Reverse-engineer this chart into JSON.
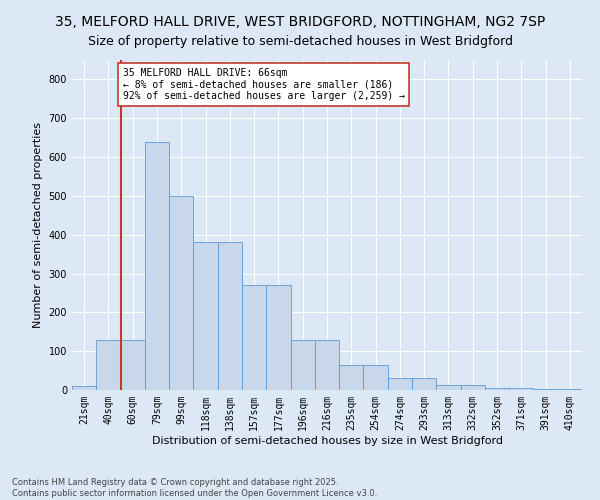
{
  "title_line1": "35, MELFORD HALL DRIVE, WEST BRIDGFORD, NOTTINGHAM, NG2 7SP",
  "title_line2": "Size of property relative to semi-detached houses in West Bridgford",
  "xlabel": "Distribution of semi-detached houses by size in West Bridgford",
  "ylabel": "Number of semi-detached properties",
  "footnote1": "Contains HM Land Registry data © Crown copyright and database right 2025.",
  "footnote2": "Contains public sector information licensed under the Open Government Licence v3.0.",
  "bar_labels": [
    "21sqm",
    "40sqm",
    "60sqm",
    "79sqm",
    "99sqm",
    "118sqm",
    "138sqm",
    "157sqm",
    "177sqm",
    "196sqm",
    "216sqm",
    "235sqm",
    "254sqm",
    "274sqm",
    "293sqm",
    "313sqm",
    "332sqm",
    "352sqm",
    "371sqm",
    "391sqm",
    "410sqm"
  ],
  "bar_values": [
    10,
    130,
    130,
    640,
    500,
    380,
    380,
    270,
    270,
    130,
    130,
    65,
    65,
    30,
    30,
    12,
    12,
    5,
    5,
    2,
    2
  ],
  "bar_color": "#c8d8ea",
  "bar_edge_color": "#5b9bd5",
  "vline_x_index": 2,
  "vline_color": "#c0392b",
  "annotation_text": "35 MELFORD HALL DRIVE: 66sqm\n← 8% of semi-detached houses are smaller (186)\n92% of semi-detached houses are larger (2,259) →",
  "annotation_box_color": "#ffffff",
  "annotation_box_edge": "#c0392b",
  "ylim": [
    0,
    850
  ],
  "yticks": [
    0,
    100,
    200,
    300,
    400,
    500,
    600,
    700,
    800
  ],
  "background_color": "#dce8f5",
  "grid_color": "#ffffff",
  "title1_fontsize": 10,
  "title2_fontsize": 9,
  "axis_label_fontsize": 8,
  "tick_fontsize": 7,
  "annotation_fontsize": 7,
  "footnote_fontsize": 6
}
